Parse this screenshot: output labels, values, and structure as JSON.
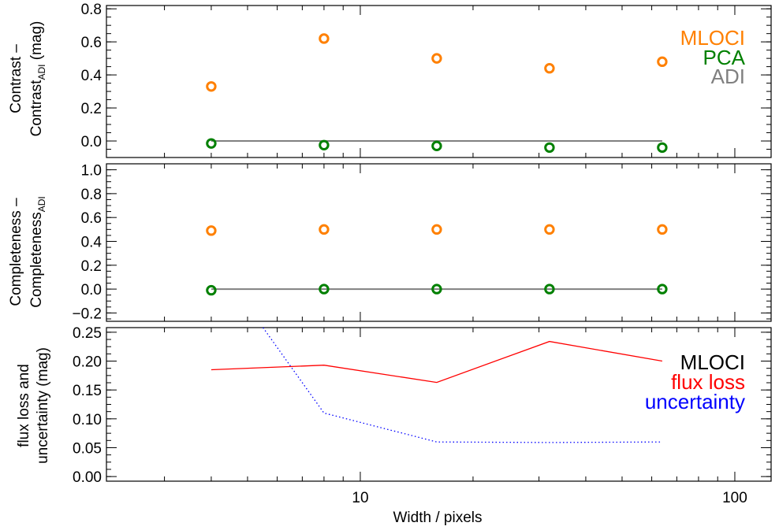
{
  "chart_data": [
    {
      "type": "scatter",
      "panel": "top",
      "ylabel_main": "Contrast –",
      "ylabel_line2": "Contrast",
      "ylabel_sub": "ADI",
      "ylabel_unit": " (mag)",
      "xscale": "log",
      "xlim": [
        2.1,
        125
      ],
      "ylim": [
        -0.1,
        0.82
      ],
      "yticks": [
        0.0,
        0.2,
        0.4,
        0.6,
        0.8
      ],
      "ytick_labels": [
        "0.0",
        "0.2",
        "0.4",
        "0.6",
        "0.8"
      ],
      "legend_position": "top-right",
      "series": [
        {
          "name": "MLOCI",
          "color": "#ff8000",
          "style": "open-circle",
          "x": [
            4,
            8,
            16,
            32,
            64
          ],
          "y": [
            0.33,
            0.62,
            0.5,
            0.44,
            0.48
          ]
        },
        {
          "name": "PCA",
          "color": "#008000",
          "style": "open-circle",
          "x": [
            4,
            8,
            16,
            32,
            64
          ],
          "y": [
            -0.015,
            -0.025,
            -0.03,
            -0.04,
            -0.04
          ]
        },
        {
          "name": "ADI",
          "color": "#808080",
          "style": "line",
          "x": [
            4,
            64
          ],
          "y": [
            0.0,
            0.0
          ]
        }
      ]
    },
    {
      "type": "scatter",
      "panel": "middle",
      "ylabel_main": "Completeness –",
      "ylabel_line2": "Completeness",
      "ylabel_sub": "ADI",
      "xscale": "log",
      "xlim": [
        2.1,
        125
      ],
      "ylim": [
        -0.27,
        1.05
      ],
      "yticks": [
        -0.2,
        0.0,
        0.2,
        0.4,
        0.6,
        0.8,
        1.0
      ],
      "ytick_labels": [
        "−0.2",
        "0.0",
        "0.2",
        "0.4",
        "0.6",
        "0.8",
        "1.0"
      ],
      "series": [
        {
          "name": "MLOCI",
          "color": "#ff8000",
          "style": "open-circle",
          "x": [
            4,
            8,
            16,
            32,
            64
          ],
          "y": [
            0.49,
            0.5,
            0.5,
            0.5,
            0.5
          ]
        },
        {
          "name": "PCA",
          "color": "#008000",
          "style": "open-circle",
          "x": [
            4,
            8,
            16,
            32,
            64
          ],
          "y": [
            -0.01,
            0.0,
            0.0,
            0.0,
            0.0
          ]
        },
        {
          "name": "ADI",
          "color": "#808080",
          "style": "line",
          "x": [
            4,
            64
          ],
          "y": [
            0.0,
            0.0
          ]
        }
      ]
    },
    {
      "type": "line",
      "panel": "bottom",
      "ylabel_line1": "flux loss and",
      "ylabel_line2": "uncertainty (mag)",
      "xlabel": "Width / pixels",
      "xscale": "log",
      "xlim": [
        2.1,
        125
      ],
      "xticks": [
        10,
        100
      ],
      "xtick_labels": [
        "10",
        "100"
      ],
      "ylim": [
        -0.008,
        0.258
      ],
      "yticks": [
        0.0,
        0.05,
        0.1,
        0.15,
        0.2,
        0.25
      ],
      "ytick_labels": [
        "0.00",
        "0.05",
        "0.10",
        "0.15",
        "0.20",
        "0.25"
      ],
      "legend_title": "MLOCI",
      "legend_position": "right",
      "series": [
        {
          "name": "flux loss",
          "color": "#ff0000",
          "style": "solid",
          "x": [
            4,
            8,
            16,
            32,
            64
          ],
          "y": [
            0.185,
            0.193,
            0.163,
            0.234,
            0.2
          ]
        },
        {
          "name": "uncertainty",
          "color": "#0000ff",
          "style": "dotted",
          "x": [
            5.5,
            8,
            16,
            32,
            64
          ],
          "y": [
            0.258,
            0.11,
            0.06,
            0.059,
            0.06
          ]
        }
      ]
    }
  ]
}
